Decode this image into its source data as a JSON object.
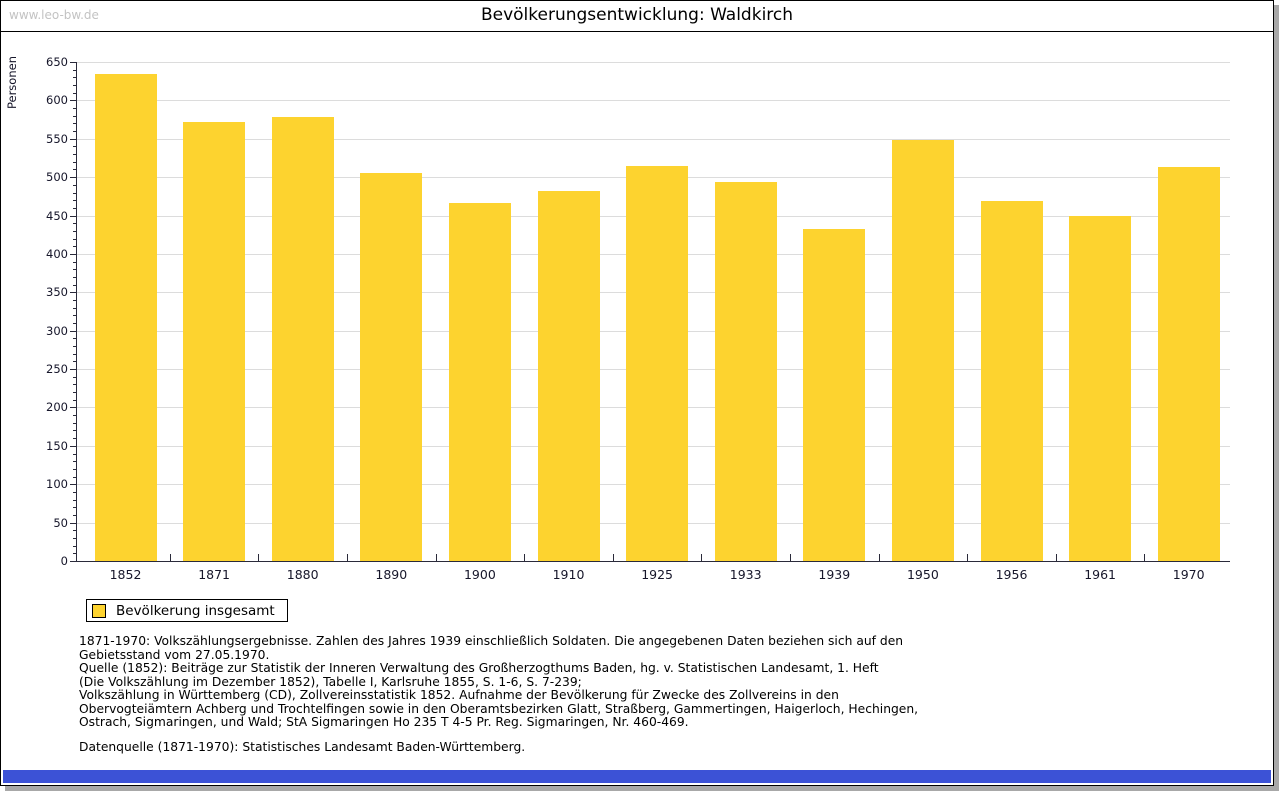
{
  "header": {
    "watermark": "www.leo-bw.de",
    "title": "Bevölkerungsentwicklung: Waldkirch"
  },
  "chart_data": {
    "type": "bar",
    "title": "Bevölkerungsentwicklung: Waldkirch",
    "xlabel": "",
    "ylabel": "Personen",
    "categories": [
      "1852",
      "1871",
      "1880",
      "1890",
      "1900",
      "1910",
      "1925",
      "1933",
      "1939",
      "1950",
      "1956",
      "1961",
      "1970"
    ],
    "values": [
      634,
      572,
      578,
      505,
      466,
      482,
      514,
      494,
      433,
      548,
      469,
      450,
      513
    ],
    "ylim": [
      0,
      650
    ],
    "ytick_step": 50,
    "minor_tick_step": 10,
    "grid": true,
    "legend": {
      "label": "Bevölkerung insgesamt",
      "position": "bottom-left"
    }
  },
  "footnotes": {
    "lines": [
      "1871-1970: Volkszählungsergebnisse. Zahlen des Jahres 1939 einschließlich Soldaten. Die angegebenen Daten beziehen sich auf den",
      "Gebietsstand vom 27.05.1970.",
      "Quelle (1852): Beiträge zur Statistik der Inneren Verwaltung des Großherzogthums Baden, hg. v. Statistischen Landesamt, 1. Heft",
      "(Die Volkszählung im Dezember 1852), Tabelle I, Karlsruhe 1855, S. 1-6, S. 7-239;",
      "Volkszählung in Württemberg (CD), Zollvereinsstatistik 1852. Aufnahme der Bevölkerung für Zwecke des Zollvereins in den",
      "Obervogteiämtern Achberg und Trochtelfingen sowie in den Oberamtsbezirken Glatt, Straßberg, Gammertingen, Haigerloch, Hechingen,",
      "Ostrach, Sigmaringen, und Wald; StA Sigmaringen Ho 235 T 4-5 Pr. Reg. Sigmaringen, Nr. 460-469."
    ],
    "datasource": "Datenquelle (1871-1970): Statistisches Landesamt Baden-Württemberg."
  },
  "colors": {
    "bar": "#fdd32f",
    "axis": "#2a2a3a",
    "grid": "#dcdcdc",
    "footer_bar": "#3c52d6",
    "watermark": "#c3c3c3"
  }
}
